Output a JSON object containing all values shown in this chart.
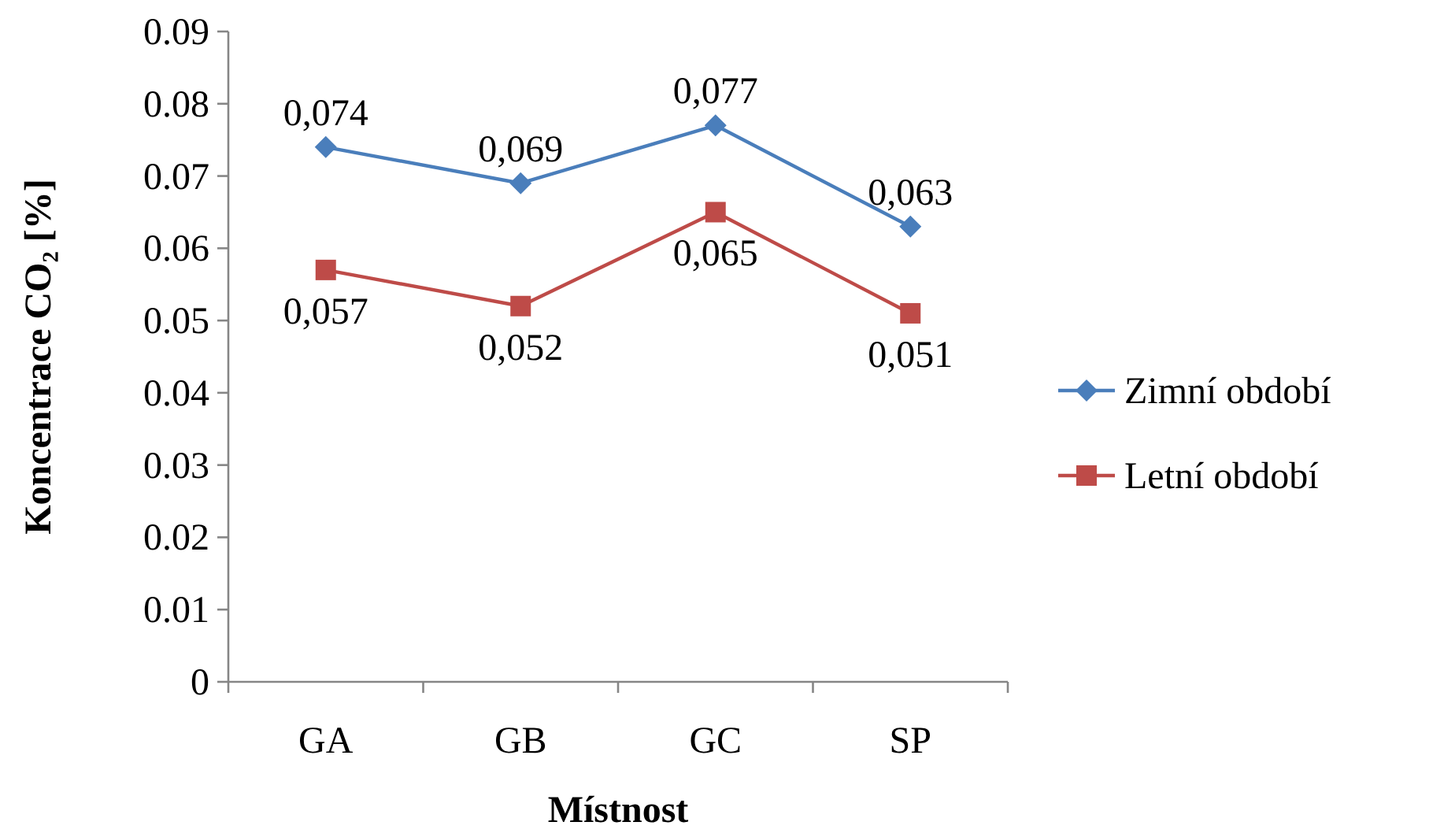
{
  "chart_data": {
    "type": "line",
    "xlabel": "Místnost",
    "ylabel": "Koncentrace CO₂ [%]",
    "categories": [
      "GA",
      "GB",
      "GC",
      "SP"
    ],
    "series": [
      {
        "name": "Zimní období",
        "color": "#4a7ebb",
        "marker": "diamond",
        "values": [
          0.074,
          0.069,
          0.077,
          0.063
        ],
        "value_labels": [
          "0,074",
          "0,069",
          "0,077",
          "0,063"
        ]
      },
      {
        "name": "Letní období",
        "color": "#be4b48",
        "marker": "square",
        "values": [
          0.057,
          0.052,
          0.065,
          0.051
        ],
        "value_labels": [
          "0,057",
          "0,052",
          "0,065",
          "0,051"
        ]
      }
    ],
    "ylim": [
      0,
      0.09
    ],
    "yticks": [
      0,
      0.01,
      0.02,
      0.03,
      0.04,
      0.05,
      0.06,
      0.07,
      0.08,
      0.09
    ],
    "grid": false,
    "legend": "right",
    "line_style": "solid"
  }
}
